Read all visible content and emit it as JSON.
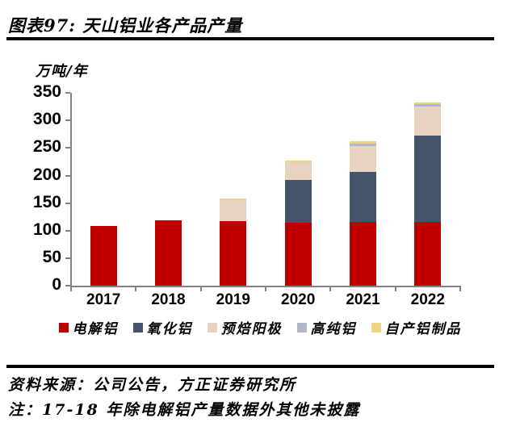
{
  "title": "图表97: 天山铝业各产品产量",
  "chart_data": {
    "type": "bar",
    "stacked": true,
    "title": "天山铝业各产品产量",
    "unit_label": "万吨/年",
    "xlabel": "",
    "ylabel": "万吨/年",
    "categories": [
      "2017",
      "2018",
      "2019",
      "2020",
      "2021",
      "2022"
    ],
    "series": [
      {
        "name": "电解铝",
        "color": "#C00000",
        "values": [
          109,
          118,
          117,
          114,
          116,
          116
        ]
      },
      {
        "name": "氧化铝",
        "color": "#44546A",
        "values": [
          0,
          0,
          0,
          78,
          91,
          156
        ]
      },
      {
        "name": "预焙阳极",
        "color": "#E9D3C0",
        "values": [
          0,
          0,
          39,
          32,
          47,
          53
        ]
      },
      {
        "name": "高纯铝",
        "color": "#ADB9CA",
        "values": [
          0,
          0,
          0,
          0,
          4,
          5
        ]
      },
      {
        "name": "自产铝制品",
        "color": "#EDD382",
        "values": [
          0,
          0,
          3,
          3,
          4,
          3
        ]
      }
    ],
    "ylim": [
      0,
      350
    ],
    "ytick_interval": 50,
    "yticks": [
      0,
      50,
      100,
      150,
      200,
      250,
      300,
      350
    ],
    "grid": false,
    "legend_position": "bottom",
    "axis_color": "#828282"
  },
  "footer": {
    "source": "资料来源：公司公告，方正证券研究所",
    "note": "注：17-18 年除电解铝产量数据外其他未披露"
  }
}
